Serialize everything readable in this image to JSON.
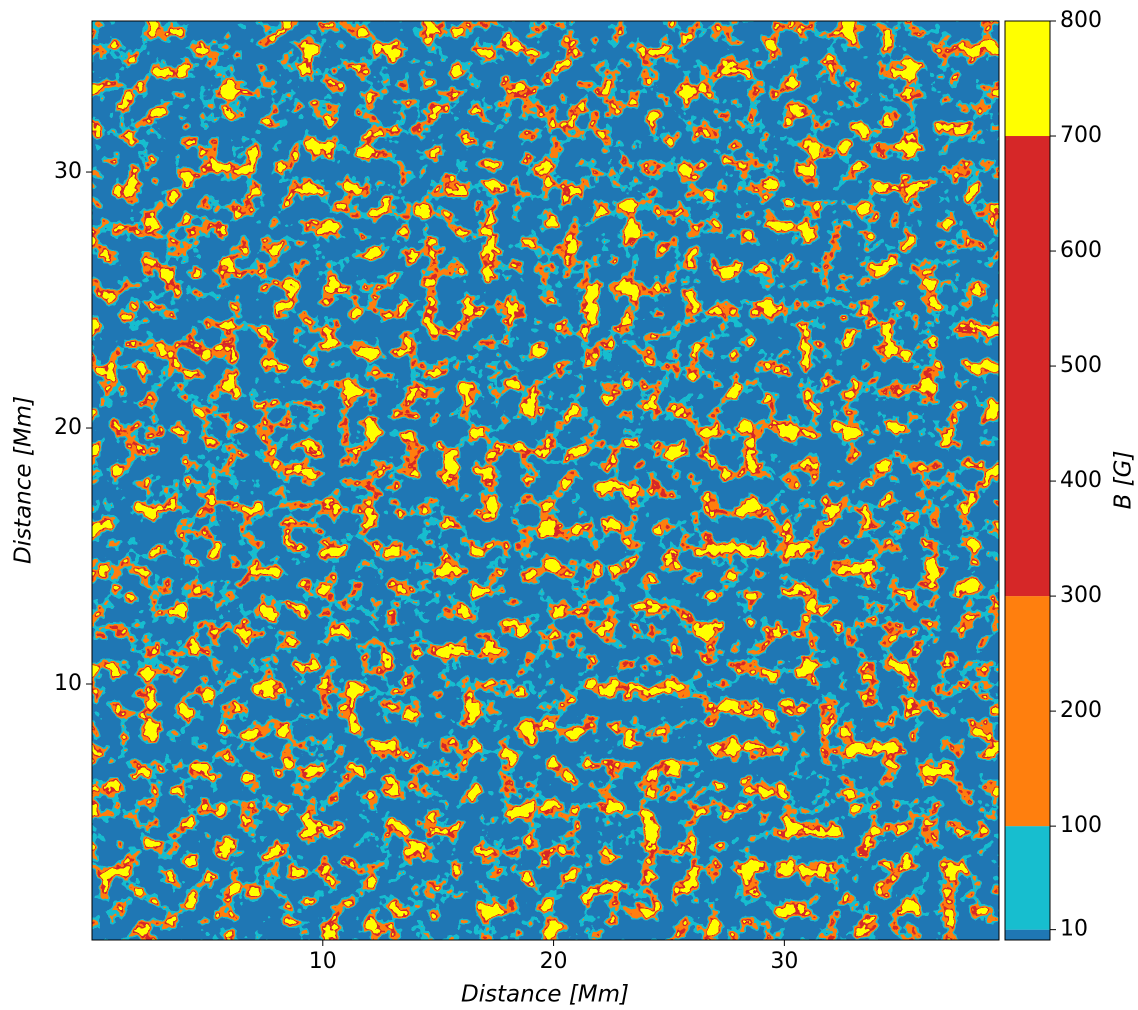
{
  "chart_data": {
    "type": "heatmap",
    "xlabel": "Distance [Mm]",
    "ylabel": "Distance [Mm]",
    "xlim": [
      0,
      39.3
    ],
    "ylim": [
      0,
      35.9
    ],
    "xticks": [
      10,
      20,
      30
    ],
    "yticks": [
      10,
      20,
      30
    ],
    "colorbar": {
      "label": "B [G]",
      "lim": [
        1,
        800
      ],
      "bounds": [
        1,
        10,
        100,
        300,
        700,
        800
      ],
      "colors": [
        "#1f77b4",
        "#17becf",
        "#ff7f0e",
        "#d62728",
        "#ffff00"
      ],
      "ticks": [
        10,
        100,
        200,
        300,
        400,
        500,
        600,
        700,
        800
      ]
    }
  }
}
